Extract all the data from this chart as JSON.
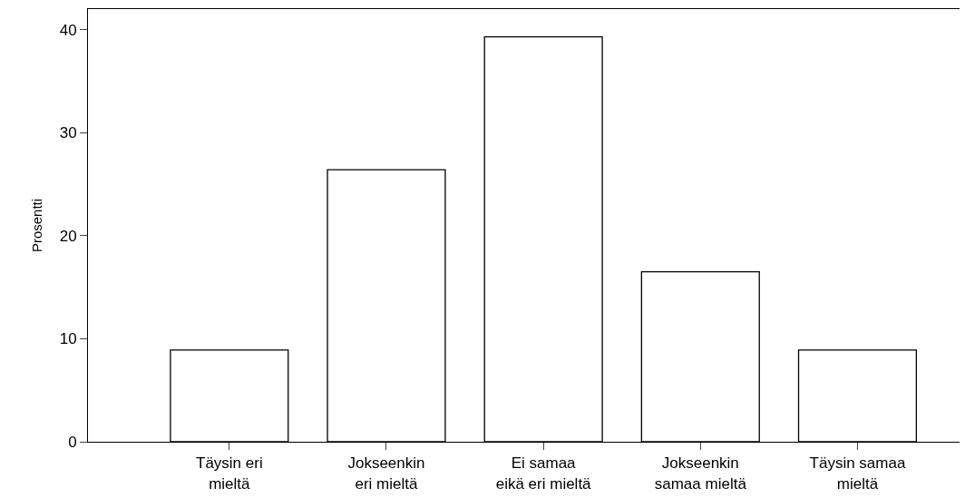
{
  "chart_data": {
    "type": "bar",
    "ylabel": "Prosentti",
    "categories": [
      "Täysin eri\nmieltä",
      "Jokseenkin\neri mieltä",
      "Ei samaa\neikä eri mieltä",
      "Jokseenkin\nsamaa mieltä",
      "Täysin samaa\nmieltä"
    ],
    "values": [
      8.9,
      26.4,
      39.3,
      16.5,
      8.9
    ],
    "color": "#ffffff",
    "ylim": [
      0,
      42
    ],
    "yticks": [
      0,
      10,
      20,
      30,
      40
    ],
    "grid": false
  }
}
